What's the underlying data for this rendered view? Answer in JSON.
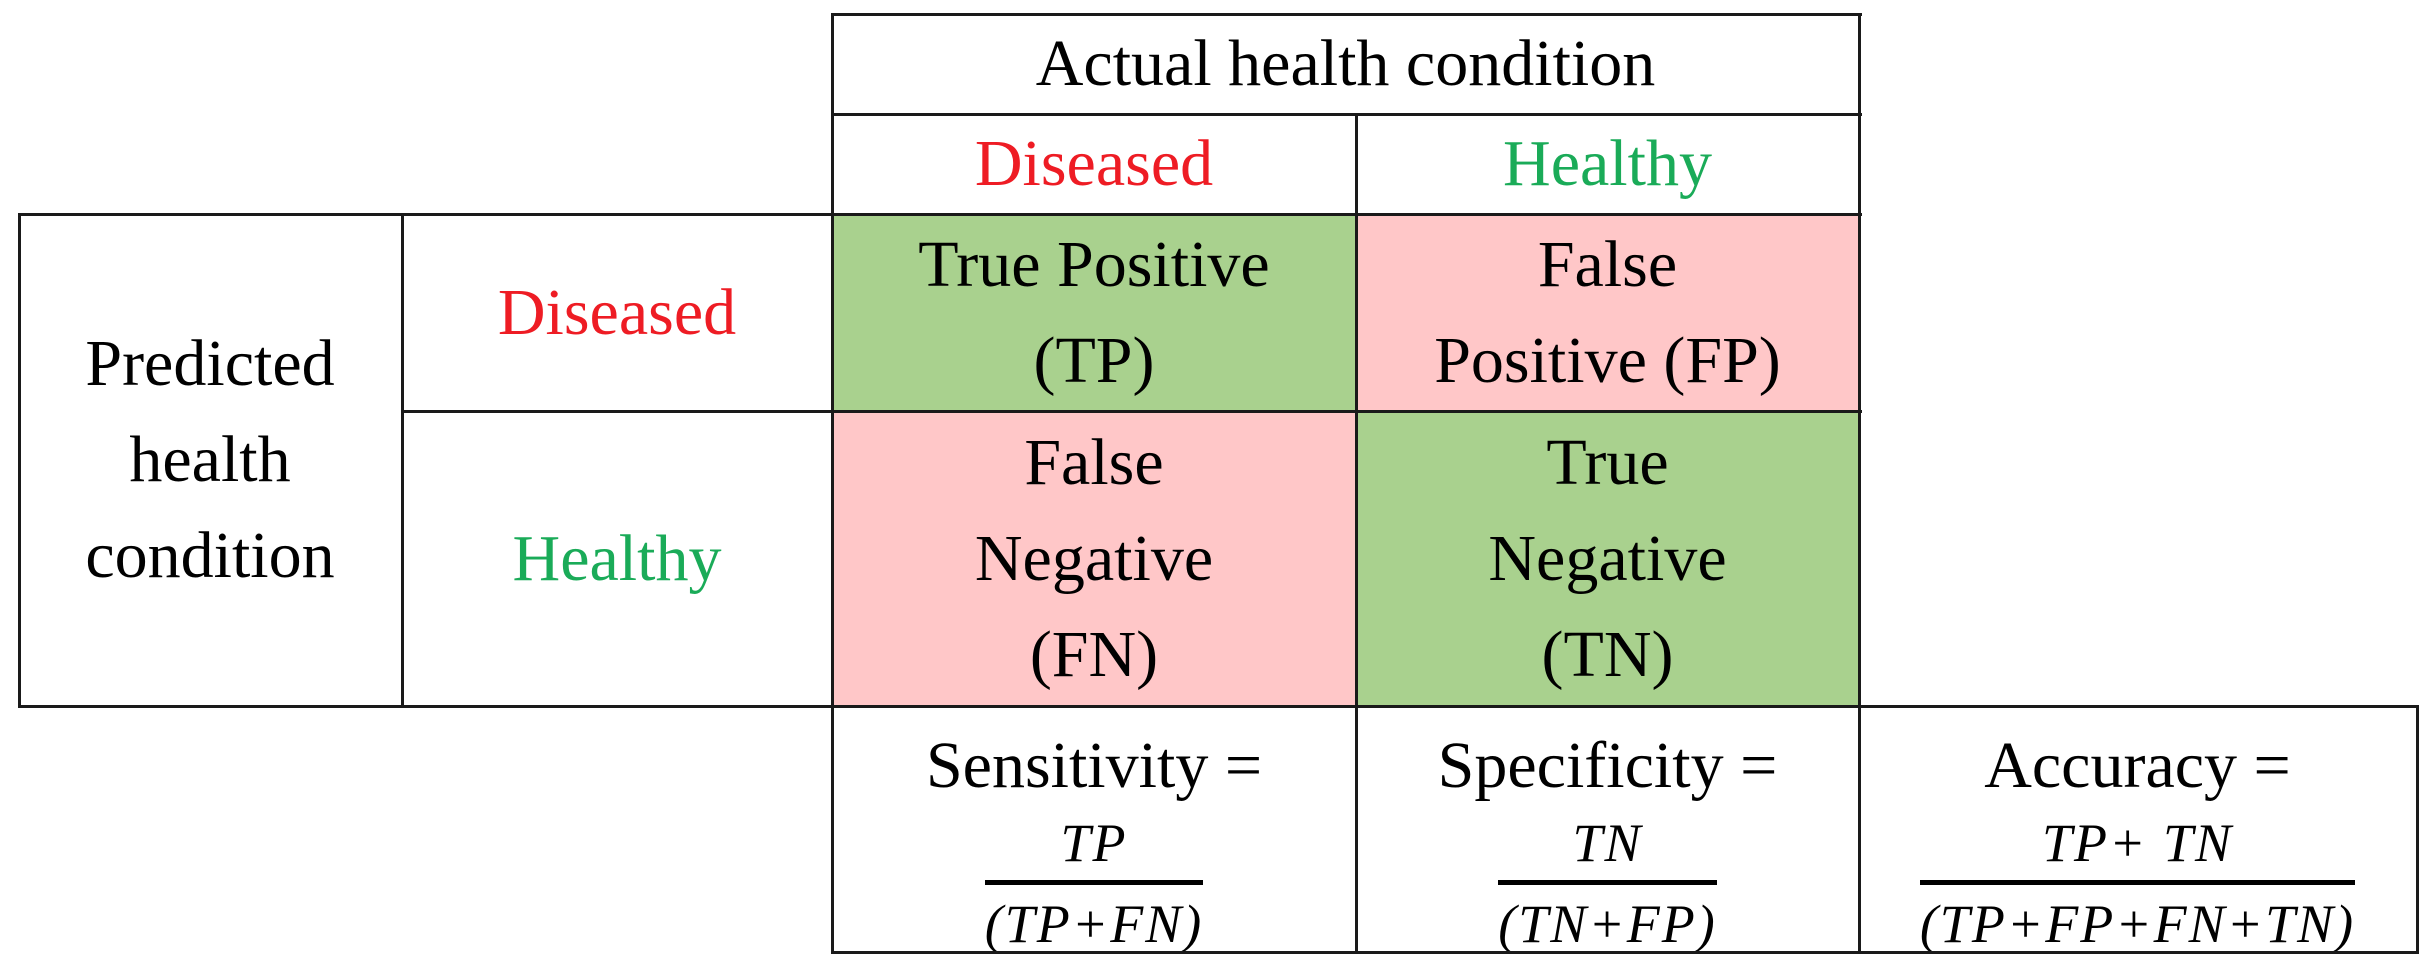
{
  "colors": {
    "diseased_text": "#ee1c24",
    "healthy_text": "#1aab58",
    "correct_fill": "#a9d18e",
    "incorrect_fill": "#ffc7c8",
    "border": "#1a1a1a"
  },
  "header": {
    "actual_title": "Actual health condition",
    "actual_diseased": "Diseased",
    "actual_healthy": "Healthy"
  },
  "rows": {
    "predicted_title": [
      "Predicted",
      "health",
      "condition"
    ],
    "predicted_diseased": "Diseased",
    "predicted_healthy": "Healthy"
  },
  "matrix": {
    "tp": [
      "True Positive",
      "(TP)"
    ],
    "fp": [
      "False",
      "Positive (FP)"
    ],
    "fn": [
      "False",
      "Negative",
      "(FN)"
    ],
    "tn": [
      "True",
      "Negative",
      "(TN)"
    ]
  },
  "metrics": {
    "sensitivity": {
      "label": "Sensitivity =",
      "numerator": "TP",
      "denominator": "(TP+FN)"
    },
    "specificity": {
      "label": "Specificity =",
      "numerator": "TN",
      "denominator": "(TN+FP)"
    },
    "accuracy": {
      "label": "Accuracy =",
      "numerator": "TP+ TN",
      "denominator": "(TP+FP+FN+TN)"
    }
  }
}
